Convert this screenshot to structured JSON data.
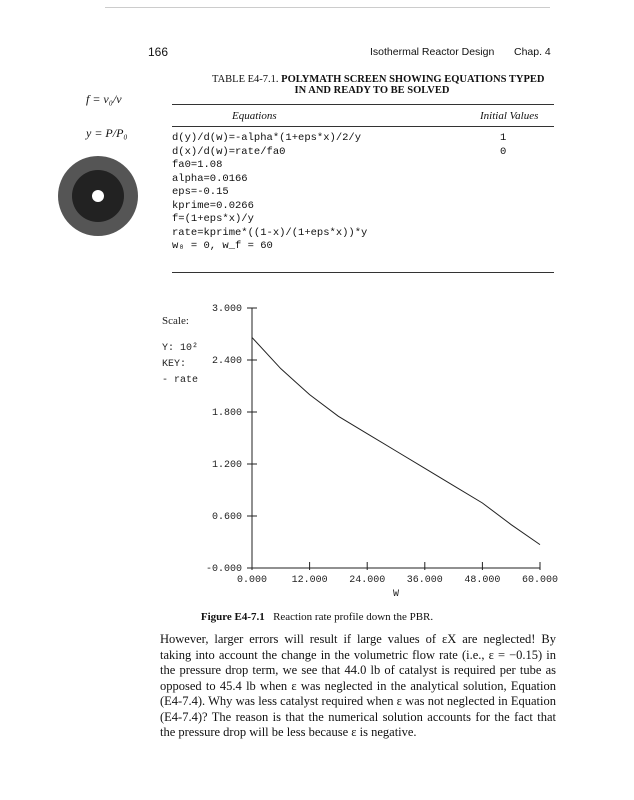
{
  "header": {
    "page": "166",
    "running_title": "Isothermal Reactor Design",
    "chapter": "Chap. 4"
  },
  "margin_notes": [
    "f = v₀/v",
    "y = P/P₀"
  ],
  "table": {
    "caption_label": "TABLE E4-7.1.",
    "caption_title": "POLYMATH SCREEN SHOWING EQUATIONS TYPED",
    "caption_subtitle": "IN AND READY TO BE SOLVED",
    "columns": [
      "Equations",
      "Initial Values"
    ],
    "rows": [
      {
        "equation": "d(y)/d(w)=-alpha*(1+eps*x)/2/y",
        "initial": "1"
      },
      {
        "equation": "d(x)/d(w)=rate/fa0",
        "initial": "0"
      },
      {
        "equation": "fa0=1.08"
      },
      {
        "equation": "alpha=0.0166"
      },
      {
        "equation": "eps=-0.15"
      },
      {
        "equation": "kprime=0.0266"
      },
      {
        "equation": "f=(1+eps*x)/y"
      },
      {
        "equation": "rate=kprime*((1-x)/(1+eps*x))*y"
      },
      {
        "equation": "w₀ = 0,   w_f = 60"
      }
    ]
  },
  "figure": {
    "type": "line",
    "scale_notes": [
      "Scale:",
      "Y: 10²",
      "KEY:",
      "- rate"
    ],
    "xlabel": "W",
    "x": [
      0,
      6,
      12,
      18,
      24,
      30,
      36,
      42,
      48,
      54,
      60
    ],
    "values": [
      2.66,
      2.3,
      2.0,
      1.75,
      1.55,
      1.35,
      1.15,
      0.95,
      0.75,
      0.5,
      0.27
    ],
    "color": "#222222",
    "xlim": [
      0,
      60
    ],
    "ylim": [
      0,
      3
    ],
    "xticks": [
      {
        "value": 0,
        "label": "0.000"
      },
      {
        "value": 12,
        "label": "12.000"
      },
      {
        "value": 24,
        "label": "24.000"
      },
      {
        "value": 36,
        "label": "36.000"
      },
      {
        "value": 48,
        "label": "48.000"
      },
      {
        "value": 60,
        "label": "60.000"
      }
    ],
    "yticks": [
      {
        "value": 0,
        "label": "-0.000"
      },
      {
        "value": 0.6,
        "label": "0.600"
      },
      {
        "value": 1.2,
        "label": "1.200"
      },
      {
        "value": 1.8,
        "label": "1.800"
      },
      {
        "value": 2.4,
        "label": "2.400"
      },
      {
        "value": 3,
        "label": "3.000"
      }
    ],
    "caption_label": "Figure E4-7.1",
    "caption": "Reaction rate profile down the PBR."
  },
  "paragraph": "However, larger errors will result if large values of εX are neglected! By taking into account the change in the volumetric flow rate (i.e., ε = −0.15) in the pressure drop term, we see that 44.0 lb of catalyst is required per tube as opposed to 45.4 lb when ε was neglected in the analytical solution, Equation (E4-7.4). Why was less catalyst required when ε was not neglected in Equation (E4-7.4)? The reason is that the numerical solution accounts for the fact that the pressure drop will be less because ε is negative."
}
